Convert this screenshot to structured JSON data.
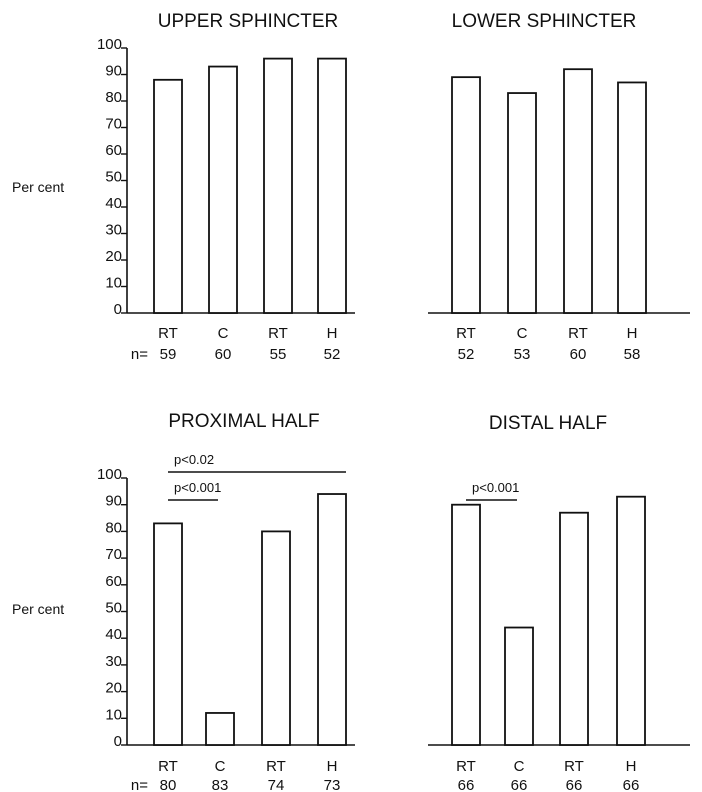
{
  "chart_data": [
    {
      "type": "bar",
      "title": "UPPER SPHINCTER",
      "ylabel": "Per cent",
      "ylim": [
        0,
        100
      ],
      "yticks": [
        "0",
        "10",
        "20",
        "30",
        "40",
        "50",
        "60",
        "70",
        "80",
        "90",
        "100"
      ],
      "categories": [
        "RT",
        "C",
        "RT",
        "H"
      ],
      "n_prefix": "n=",
      "n": [
        "59",
        "60",
        "55",
        "52"
      ],
      "values": [
        88,
        93,
        96,
        96
      ],
      "annotations": []
    },
    {
      "type": "bar",
      "title": "LOWER SPHINCTER",
      "ylabel": "",
      "ylim": [
        0,
        100
      ],
      "yticks": [],
      "categories": [
        "RT",
        "C",
        "RT",
        "H"
      ],
      "n_prefix": "",
      "n": [
        "52",
        "53",
        "60",
        "58"
      ],
      "values": [
        89,
        83,
        92,
        87
      ],
      "annotations": []
    },
    {
      "type": "bar",
      "title": "PROXIMAL HALF",
      "ylabel": "Per cent",
      "ylim": [
        0,
        100
      ],
      "yticks": [
        "0",
        "10",
        "20",
        "30",
        "40",
        "50",
        "60",
        "70",
        "80",
        "90",
        "100"
      ],
      "categories": [
        "RT",
        "C",
        "RT",
        "H"
      ],
      "n_prefix": "n=",
      "n": [
        "80",
        "83",
        "74",
        "73"
      ],
      "values": [
        83,
        12,
        80,
        94
      ],
      "annotations": [
        {
          "label": "p<0.02",
          "from": 0,
          "to": 3,
          "level": 2
        },
        {
          "label": "p<0.001",
          "from": 0,
          "to": 1,
          "level": 1
        }
      ]
    },
    {
      "type": "bar",
      "title": "DISTAL HALF",
      "ylabel": "",
      "ylim": [
        0,
        100
      ],
      "yticks": [],
      "categories": [
        "RT",
        "C",
        "RT",
        "H"
      ],
      "n_prefix": "",
      "n": [
        "66",
        "66",
        "66",
        "66"
      ],
      "values": [
        90,
        44,
        87,
        93
      ],
      "annotations": [
        {
          "label": "p<0.001",
          "from": 0,
          "to": 1,
          "level": 1
        }
      ]
    }
  ]
}
